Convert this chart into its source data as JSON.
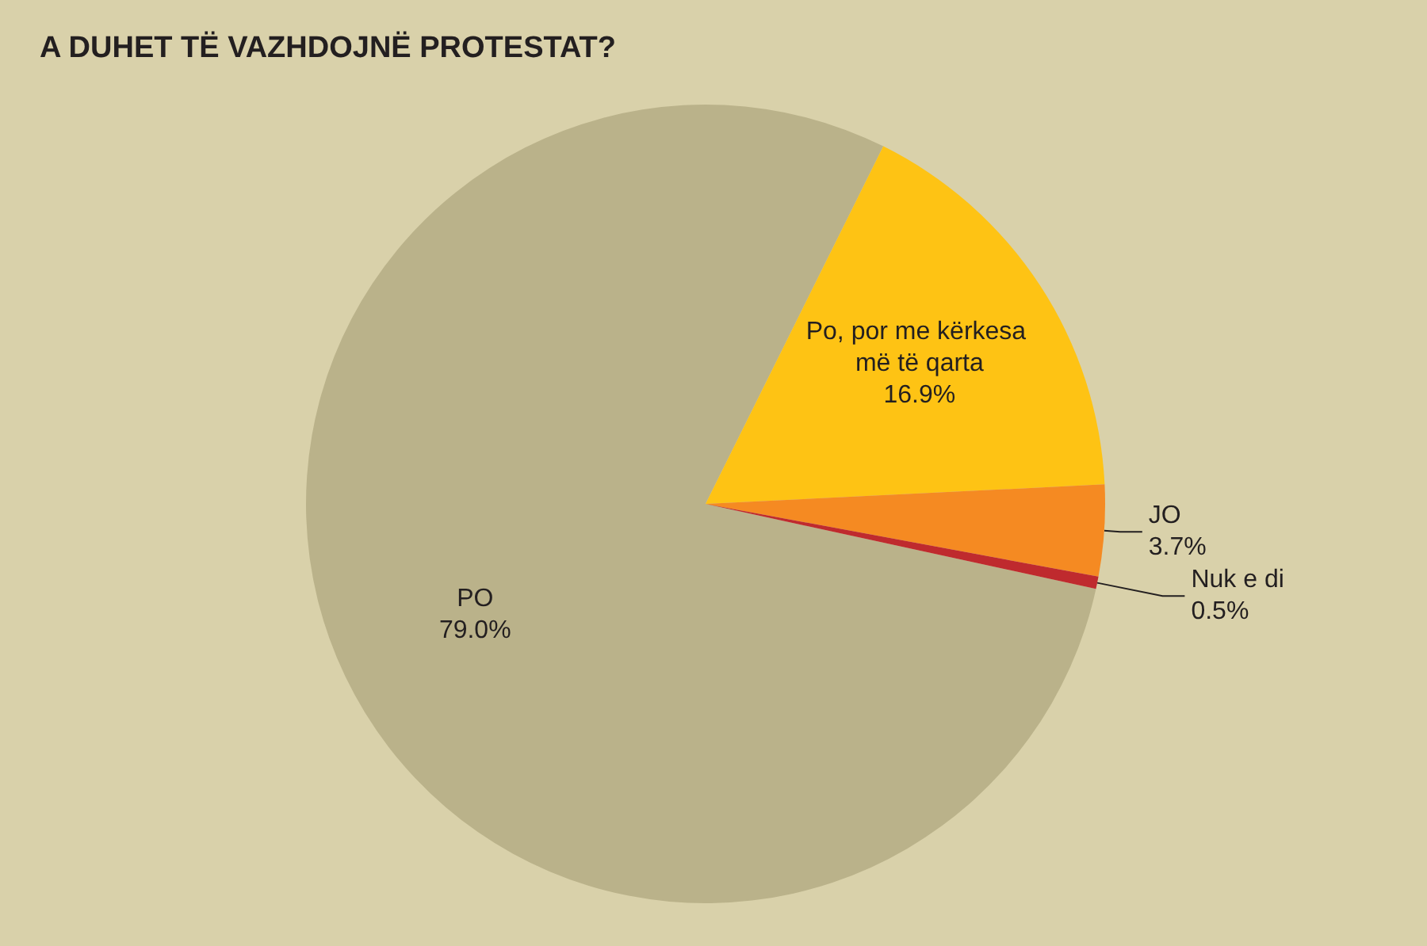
{
  "chart_data": {
    "type": "pie",
    "title": "A DUHET TË VAZHDOJNË PROTESTAT?",
    "categories": [
      "PO",
      "Po, por me kërkesa më të qarta",
      "JO",
      "Nuk e di"
    ],
    "values": [
      79.0,
      16.9,
      3.7,
      0.5
    ],
    "value_labels": [
      "79.0%",
      "16.9%",
      "3.7%",
      "0.5%"
    ],
    "colors": [
      "#bab28a",
      "#fec314",
      "#f58a22",
      "#bf2a2e"
    ],
    "legend": false
  }
}
